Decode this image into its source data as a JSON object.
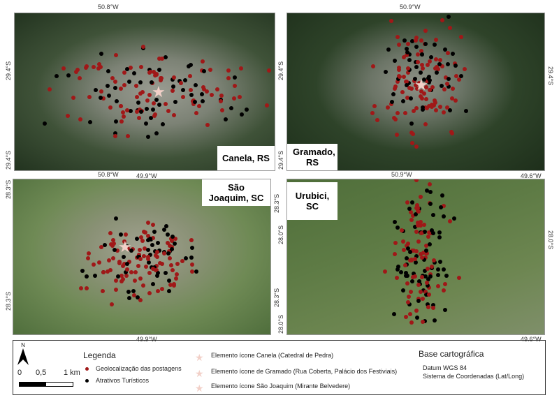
{
  "maps": [
    {
      "label": "Canela, RS",
      "top_lon": "50.8°W",
      "bottom_lon": "50.8°W",
      "left_lat_top": "29.4°S",
      "left_lat_bottom": "29.4°S"
    },
    {
      "label_line1": "Gramado,",
      "label_line2": "RS",
      "top_lon": "50.9°W",
      "bottom_lon": "50.9°W",
      "left_lat_top": "29.4°S",
      "left_lat_bottom": "29.4°S",
      "right_lat": "29.4°S"
    },
    {
      "label_line1": "São",
      "label_line2": "Joaquim, SC",
      "top_lon": "49.9°W",
      "bottom_lon": "49.9°W",
      "left_lat_top": "28.3°S",
      "left_lat_bottom": "28.3°S",
      "right_lat_top": "28.3°S",
      "right_lat_bottom": "28.3°S"
    },
    {
      "label": "Urubici, SC",
      "top_lon": "49.6°W",
      "bottom_lon": "49.6°W",
      "left_lat_top": "28.0°S",
      "left_lat_bottom": "28.0°S",
      "right_lat": "28.0°S"
    }
  ],
  "colors": {
    "posts": "#a01818",
    "attractions": "#000000",
    "star": "#f2d0c8"
  },
  "legend": {
    "north": "N",
    "scale": [
      "0",
      "0,5",
      "1 km"
    ],
    "title": "Legenda",
    "posts": "Geolocalização das postagens",
    "attractions": "Atrativos Turísticos",
    "icons": [
      "Elemento ícone Canela (Catedral de Pedra)",
      "Elemento ícone de Gramado (Rua Coberta, Palácio dos Festiviais)",
      "Elemento ícone São Joaquim (Mirante Belvedere)"
    ],
    "base_title": "Base cartográfica",
    "datum": "Datum WGS 84",
    "crs": "Sistema de Coordenadas (Lat/Long)"
  }
}
